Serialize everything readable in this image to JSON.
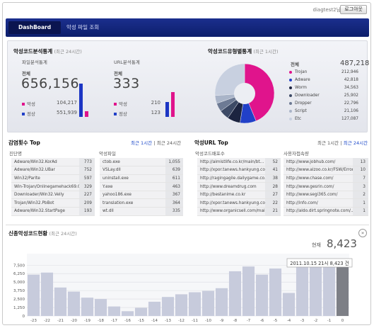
{
  "header": {
    "user": "diagtest2님",
    "logout_label": "로그아웃"
  },
  "nav": {
    "tabs": [
      {
        "label": "DashBoard"
      },
      {
        "label": "악성 파일 조회"
      }
    ]
  },
  "stats": {
    "title": "악성코드분석통계",
    "title_note": "(최근 24시간)",
    "file": {
      "title": "파일분석통계",
      "total_label": "전체",
      "total": "656,156",
      "malicious_label": "악성",
      "malicious": "104,217",
      "normal_label": "정상",
      "normal": "551,939"
    },
    "url": {
      "title": "URL분석통계",
      "total_label": "전체",
      "total": "333",
      "malicious_label": "악성",
      "malicious": "210",
      "normal_label": "정상",
      "normal": "123"
    }
  },
  "types": {
    "title": "악성코드유형별통계",
    "title_note": "(최근 1시간)",
    "total_label": "전체",
    "total": "487,218",
    "items": [
      {
        "name": "Trojan",
        "value": "212,946",
        "color": "#e0148c"
      },
      {
        "name": "Adware",
        "value": "42,818",
        "color": "#2140c8"
      },
      {
        "name": "Worm",
        "value": "34,563",
        "color": "#1c2440"
      },
      {
        "name": "Downloader",
        "value": "25,902",
        "color": "#3d4a66"
      },
      {
        "name": "Dropper",
        "value": "22,796",
        "color": "#6d7a94"
      },
      {
        "name": "Script",
        "value": "21,106",
        "color": "#a9b4c8"
      },
      {
        "name": "Etc",
        "value": "127,087",
        "color": "#c8d0e0"
      }
    ]
  },
  "infection": {
    "title": "감염횟수 Top",
    "link_1h": "최근 1시간",
    "sep": "|",
    "link_24h": "최근 24시간",
    "col1": "진단명",
    "col2": "악성파일",
    "rows1": [
      {
        "name": "Adware/Win32.KorAd",
        "count": "773"
      },
      {
        "name": "Adware/Win32.UBar",
        "count": "752"
      },
      {
        "name": "Win32/Parite",
        "count": "597"
      },
      {
        "name": "Win-Trojan/Onlinegamehack69.Gen",
        "count": "329"
      },
      {
        "name": "Downloader/Win32.Velly",
        "count": "227"
      },
      {
        "name": "Trojan/Win32.PbBot",
        "count": "209"
      },
      {
        "name": "Adware/Win32.StartPage",
        "count": "193"
      }
    ],
    "rows2": [
      {
        "name": "ctob.exe",
        "count": "1,055"
      },
      {
        "name": "VSLay.dll",
        "count": "639"
      },
      {
        "name": "uninstall.exe",
        "count": "611"
      },
      {
        "name": "Y.exe",
        "count": "463"
      },
      {
        "name": "yahoo186.exe",
        "count": "367"
      },
      {
        "name": "translation.exe",
        "count": "364"
      },
      {
        "name": "wt.dll",
        "count": "335"
      }
    ]
  },
  "urltop": {
    "title": "악성URL Top",
    "link_1h": "최근 1시간",
    "sep": "|",
    "link_24h": "최근 24시간",
    "col1": "악성코드배포수",
    "col2": "사용자접속량",
    "rows1": [
      {
        "name": "http://aimistlife.co.kr/main/bt...",
        "count": "52"
      },
      {
        "name": "http://xpor.tanews.hankyung.com/...",
        "count": "41"
      },
      {
        "name": "http://ragingagile.dailygame.co.kr",
        "count": "38"
      },
      {
        "name": "http://www.dreamdrug.com",
        "count": "28"
      },
      {
        "name": "http://bestanime.co.kr",
        "count": "27"
      },
      {
        "name": "http://xpor.tanews.hankyung.com/...",
        "count": "22"
      },
      {
        "name": "http://www.organicsell.com/main.og...",
        "count": "21"
      }
    ],
    "rows2": [
      {
        "name": "http://www.jobhub.com/",
        "count": "13"
      },
      {
        "name": "http://www.alzoo.co.kr/FSW/Error...",
        "count": "10"
      },
      {
        "name": "http://www.chase.com/",
        "count": "7"
      },
      {
        "name": "http://www.gesrin.com/",
        "count": "3"
      },
      {
        "name": "http://www.segi365.com/",
        "count": "2"
      },
      {
        "name": "http://info.com/",
        "count": "1"
      },
      {
        "name": "http://aldo.dirt.springnote.com/...",
        "count": "1"
      }
    ]
  },
  "new_malware": {
    "title": "신종악성코드현황",
    "title_note": "(최근 24시간)",
    "current_label": "현재",
    "current": "8,423",
    "tooltip": "2011.10.15 21시 8,423 건"
  },
  "chart_data": {
    "type": "bar",
    "title": "신종악성코드현황 (최근 24시간)",
    "categories": [
      "-23",
      "-22",
      "-21",
      "-20",
      "-19",
      "-18",
      "-17",
      "-16",
      "-15",
      "-14",
      "-13",
      "-12",
      "-11",
      "-10",
      "-9",
      "-8",
      "-7",
      "-6",
      "-5",
      "-4",
      "-3",
      "-2",
      "-1",
      "0"
    ],
    "x_tick_labels": [
      "-23",
      "-22",
      "-21",
      "-20",
      "-19",
      "-18",
      "-17",
      "-16",
      "-15",
      "-14",
      "-13",
      "-12",
      "-11",
      "-10",
      "-9",
      "-8",
      "-7",
      "-6",
      "-5",
      "-4",
      "-3",
      "-2",
      "-1",
      "0"
    ],
    "values": [
      6100,
      6400,
      4200,
      3600,
      2700,
      2500,
      1400,
      700,
      1200,
      2100,
      2800,
      3200,
      3500,
      3700,
      4100,
      6600,
      7300,
      6100,
      7000,
      3400,
      7200,
      7400,
      8000,
      8423
    ],
    "highlight_index": 23,
    "yticks": [
      0,
      1250,
      2500,
      3750,
      5000,
      6250,
      7500
    ],
    "ylim": [
      0,
      9200
    ],
    "bar_color": "#c7cbdc",
    "highlight_color": "#7d7f86",
    "grid": true
  }
}
